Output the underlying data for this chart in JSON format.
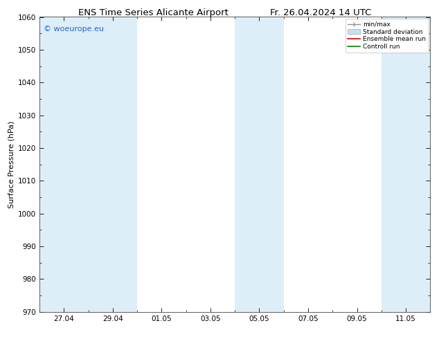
{
  "title_left": "ENS Time Series Alicante Airport",
  "title_right": "Fr. 26.04.2024 14 UTC",
  "ylabel": "Surface Pressure (hPa)",
  "ylim": [
    970,
    1060
  ],
  "yticks": [
    970,
    980,
    990,
    1000,
    1010,
    1020,
    1030,
    1040,
    1050,
    1060
  ],
  "xtick_labels": [
    "27.04",
    "29.04",
    "01.05",
    "03.05",
    "05.05",
    "07.05",
    "09.05",
    "11.05"
  ],
  "xtick_positions": [
    1,
    3,
    5,
    7,
    9,
    11,
    13,
    15
  ],
  "x_min": 0,
  "x_max": 16,
  "shaded_bands": [
    {
      "x_start": 0,
      "x_end": 2
    },
    {
      "x_start": 2,
      "x_end": 4
    },
    {
      "x_start": 8,
      "x_end": 10
    },
    {
      "x_start": 14,
      "x_end": 16
    }
  ],
  "band_color": "#ddeef8",
  "watermark_text": "© woeurope.eu",
  "watermark_color": "#2266cc",
  "legend_items": [
    {
      "label": "min/max",
      "color": "#909090",
      "style": "minmax"
    },
    {
      "label": "Standard deviation",
      "color": "#c8dff0",
      "style": "box"
    },
    {
      "label": "Ensemble mean run",
      "color": "#dd0000",
      "style": "line"
    },
    {
      "label": "Controll run",
      "color": "#008800",
      "style": "line"
    }
  ],
  "background_color": "#ffffff",
  "plot_bg_color": "#ffffff",
  "title_fontsize": 9.5,
  "tick_fontsize": 7.5,
  "ylabel_fontsize": 8,
  "watermark_fontsize": 8
}
